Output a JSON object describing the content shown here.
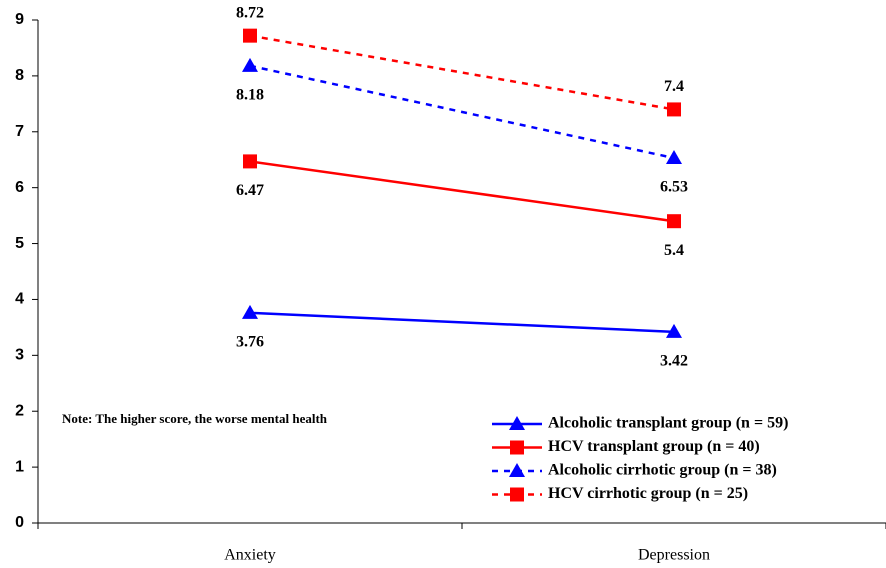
{
  "chart_data": {
    "type": "line",
    "categories": [
      "Anxiety",
      "Depression"
    ],
    "ylim": [
      0,
      9
    ],
    "yticks": [
      0,
      1,
      2,
      3,
      4,
      5,
      6,
      7,
      8,
      9
    ],
    "grid": false,
    "annotation": "Note: The higher score, the worse mental health",
    "legend": "lower right",
    "series": [
      {
        "name": "Alcoholic transplant group (n = 59)",
        "color": "#0000ff",
        "marker": "triangle",
        "dashed": false,
        "values": [
          3.76,
          3.42
        ]
      },
      {
        "name": "HCV transplant group (n = 40)",
        "color": "#ff0000",
        "marker": "square",
        "dashed": false,
        "values": [
          6.47,
          5.4
        ]
      },
      {
        "name": "Alcoholic cirrhotic group (n = 38)",
        "color": "#0000ff",
        "marker": "triangle",
        "dashed": true,
        "values": [
          8.18,
          6.53
        ]
      },
      {
        "name": "HCV cirrhotic group (n = 25)",
        "color": "#ff0000",
        "marker": "square",
        "dashed": true,
        "values": [
          8.72,
          7.4
        ]
      }
    ]
  }
}
